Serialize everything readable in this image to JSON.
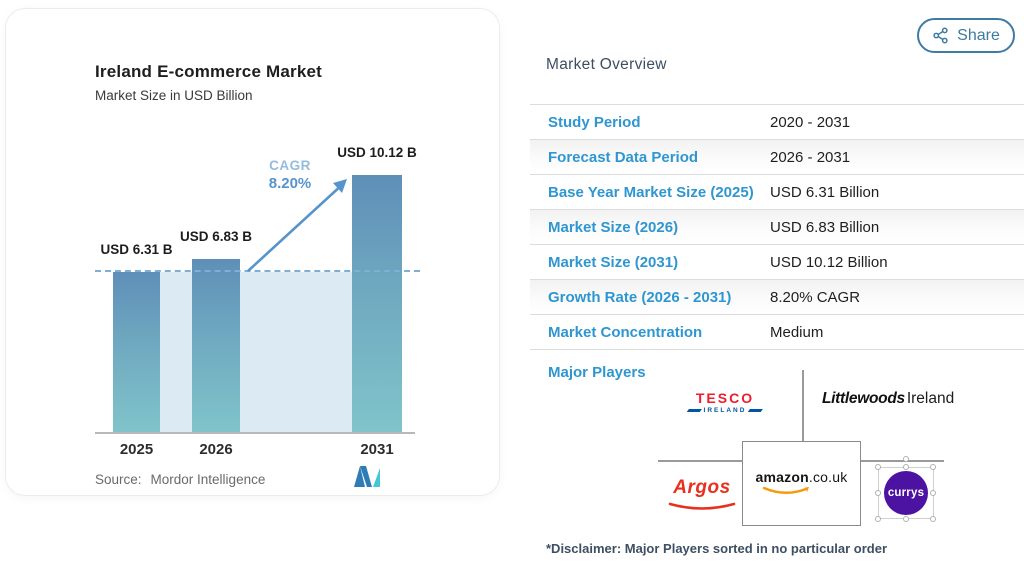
{
  "share": {
    "label": "Share"
  },
  "chart_card": {
    "title": "Ireland E-commerce Market",
    "subtitle": "Market Size in USD Billion",
    "cagr_label": "CAGR",
    "cagr_value": "8.20%",
    "source_label": "Source:",
    "source_value": "Mordor Intelligence"
  },
  "chart_data": {
    "type": "bar",
    "title": "Ireland E-commerce Market",
    "subtitle": "Market Size in USD Billion",
    "unit": "USD Billion",
    "categories": [
      "2025",
      "2026",
      "2031"
    ],
    "values": [
      6.31,
      6.83,
      10.12
    ],
    "bar_labels": [
      "USD 6.31 B",
      "USD 6.83 B",
      "USD 10.12 B"
    ],
    "cagr_label": "CAGR",
    "cagr_value": "8.20%",
    "cagr_period": "2026 - 2031",
    "baseline_reference_value": 6.31,
    "ylim": [
      0,
      10.5
    ],
    "grid": false,
    "legend": false,
    "source": "Mordor Intelligence",
    "colors": {
      "bar_gradient_top": "#5f8fb8",
      "bar_gradient_bottom": "#80c4ca",
      "band": "#dceaf3",
      "dashed_line": "#7eafd6",
      "arrow": "#5694cd",
      "cagr_label": "#93bcde",
      "cagr_value": "#5694cd"
    }
  },
  "overview": {
    "heading": "Market Overview",
    "rows": [
      {
        "label": "Study Period",
        "value": "2020 - 2031"
      },
      {
        "label": "Forecast Data Period",
        "value": "2026 - 2031"
      },
      {
        "label": "Base Year Market Size (2025)",
        "value": "USD 6.31 Billion"
      },
      {
        "label": "Market Size (2026)",
        "value": "USD 6.83 Billion"
      },
      {
        "label": "Market Size (2031)",
        "value": "USD 10.12 Billion"
      },
      {
        "label": "Growth Rate (2026 - 2031)",
        "value": "8.20% CAGR"
      },
      {
        "label": "Market Concentration",
        "value": "Medium"
      }
    ],
    "major_players_label": "Major Players",
    "players": {
      "tesco": {
        "line1": "TESCO",
        "line2": "IRELAND"
      },
      "littlewoods": {
        "part1": "Littlewoods",
        "part2": "Ireland"
      },
      "argos": "Argos",
      "amazon": {
        "part1": "amazon",
        "part2": ".co.uk"
      },
      "currys": "currys"
    },
    "disclaimer": "*Disclaimer: Major Players sorted in no particular order"
  },
  "colors": {
    "row_label_blue": "#2e96d1",
    "share_accent": "#3e7ba2",
    "heading_slate": "#3d4f63",
    "currys_purple": "#4c12a1",
    "tesco_red": "#ee1c2e",
    "tesco_blue": "#0055a4",
    "argos_red": "#e8301e",
    "amazon_orange": "#f7990a"
  }
}
